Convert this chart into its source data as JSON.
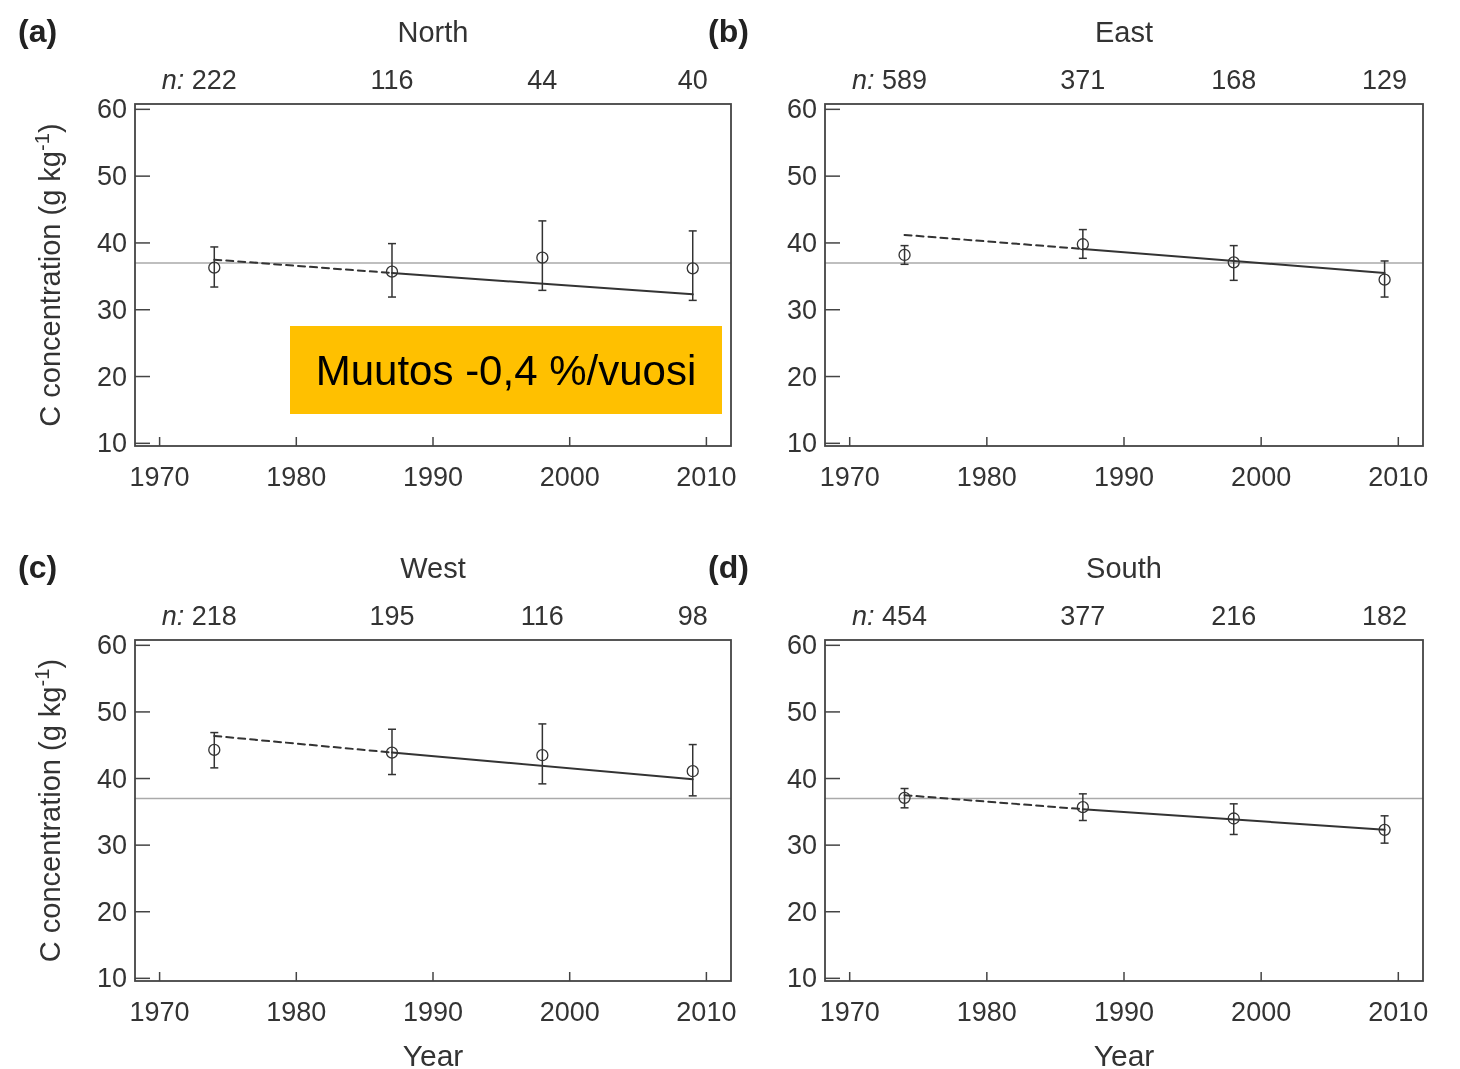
{
  "chart_data": [
    {
      "type": "scatter",
      "title": "North",
      "annotations": [
        "(a)",
        "n:",
        "222",
        "116",
        "44",
        "40"
      ],
      "ylabel": "C concentration (g kg$^{-1}$)",
      "xlim": [
        1968.2,
        2011.8
      ],
      "xticks": [
        1970,
        1980,
        1990,
        2000,
        2010
      ],
      "ylim": [
        9.6,
        60.8
      ],
      "yticks": [
        10,
        20,
        30,
        40,
        50,
        60
      ],
      "marker": "circle",
      "grid": false,
      "ref_lines": [
        {
          "axis": "y",
          "value": 37,
          "color": "#aaaaaa"
        }
      ],
      "series": [
        {
          "type": "scatter",
          "color": "#333333",
          "x": [
            1974,
            1987,
            1998,
            2009
          ],
          "values": [
            36.3,
            35.7,
            37.8,
            36.2
          ],
          "errors": [
            [
              33.4,
              39.4
            ],
            [
              31.9,
              39.9
            ],
            [
              32.9,
              43.3
            ],
            [
              31.4,
              41.8
            ]
          ]
        },
        {
          "type": "line",
          "color": "#333333",
          "line_style": "dashed",
          "marker": "none",
          "x": [
            1974,
            1987
          ],
          "values": [
            37.5,
            35.5
          ]
        },
        {
          "type": "line",
          "color": "#333333",
          "line_style": "solid",
          "marker": "none",
          "x": [
            1987,
            2009
          ],
          "values": [
            35.5,
            32.3
          ]
        }
      ]
    },
    {
      "type": "scatter",
      "title": "East",
      "annotations": [
        "(b)",
        "n:",
        "589",
        "371",
        "168",
        "129"
      ],
      "xlim": [
        1968.2,
        2011.8
      ],
      "xticks": [
        1970,
        1980,
        1990,
        2000,
        2010
      ],
      "ylim": [
        9.6,
        60.8
      ],
      "yticks": [
        10,
        20,
        30,
        40,
        50,
        60
      ],
      "marker": "circle",
      "grid": false,
      "ref_lines": [
        {
          "axis": "y",
          "value": 37,
          "color": "#aaaaaa"
        }
      ],
      "series": [
        {
          "type": "scatter",
          "color": "#333333",
          "x": [
            1974,
            1987,
            1998,
            2009
          ],
          "values": [
            38.2,
            39.8,
            37.1,
            34.5
          ],
          "errors": [
            [
              36.8,
              39.6
            ],
            [
              37.7,
              42.0
            ],
            [
              34.4,
              39.6
            ],
            [
              31.9,
              37.3
            ]
          ]
        },
        {
          "type": "line",
          "color": "#333333",
          "line_style": "dashed",
          "marker": "none",
          "x": [
            1974,
            1987
          ],
          "values": [
            41.2,
            39.1
          ]
        },
        {
          "type": "line",
          "color": "#333333",
          "line_style": "solid",
          "marker": "none",
          "x": [
            1987,
            2009
          ],
          "values": [
            39.1,
            35.5
          ]
        }
      ]
    },
    {
      "type": "scatter",
      "title": "West",
      "annotations": [
        "(c)",
        "n:",
        "218",
        "195",
        "116",
        "98"
      ],
      "ylabel": "C concentration (g kg$^{-1}$)",
      "xlabel": "Year",
      "xlim": [
        1968.2,
        2011.8
      ],
      "xticks": [
        1970,
        1980,
        1990,
        2000,
        2010
      ],
      "ylim": [
        9.6,
        60.8
      ],
      "yticks": [
        10,
        20,
        30,
        40,
        50,
        60
      ],
      "marker": "circle",
      "grid": false,
      "ref_lines": [
        {
          "axis": "y",
          "value": 37,
          "color": "#aaaaaa"
        }
      ],
      "series": [
        {
          "type": "scatter",
          "color": "#333333",
          "x": [
            1974,
            1987,
            1998,
            2009
          ],
          "values": [
            44.3,
            43.9,
            43.5,
            41.1
          ],
          "errors": [
            [
              41.6,
              46.9
            ],
            [
              40.6,
              47.4
            ],
            [
              39.2,
              48.2
            ],
            [
              37.4,
              45.1
            ]
          ]
        },
        {
          "type": "line",
          "color": "#333333",
          "line_style": "dashed",
          "marker": "none",
          "x": [
            1974,
            1987
          ],
          "values": [
            46.4,
            43.9
          ]
        },
        {
          "type": "line",
          "color": "#333333",
          "line_style": "solid",
          "marker": "none",
          "x": [
            1987,
            2009
          ],
          "values": [
            43.9,
            39.9
          ]
        }
      ]
    },
    {
      "type": "scatter",
      "title": "South",
      "annotations": [
        "(d)",
        "n:",
        "454",
        "377",
        "216",
        "182"
      ],
      "xlabel": "Year",
      "xlim": [
        1968.2,
        2011.8
      ],
      "xticks": [
        1970,
        1980,
        1990,
        2000,
        2010
      ],
      "ylim": [
        9.6,
        60.8
      ],
      "yticks": [
        10,
        20,
        30,
        40,
        50,
        60
      ],
      "marker": "circle",
      "grid": false,
      "ref_lines": [
        {
          "axis": "y",
          "value": 37,
          "color": "#aaaaaa"
        }
      ],
      "series": [
        {
          "type": "scatter",
          "color": "#333333",
          "x": [
            1974,
            1987,
            1998,
            2009
          ],
          "values": [
            37.1,
            35.7,
            34.0,
            32.3
          ],
          "errors": [
            [
              35.6,
              38.5
            ],
            [
              33.7,
              37.7
            ],
            [
              31.6,
              36.2
            ],
            [
              30.3,
              34.4
            ]
          ]
        },
        {
          "type": "line",
          "color": "#333333",
          "line_style": "dashed",
          "marker": "none",
          "x": [
            1974,
            1987
          ],
          "values": [
            37.5,
            35.4
          ]
        },
        {
          "type": "line",
          "color": "#333333",
          "line_style": "solid",
          "marker": "none",
          "x": [
            1987,
            2009
          ],
          "values": [
            35.4,
            32.3
          ]
        }
      ]
    },
    {
      "type": "other",
      "annotations": [
        "Muutos -0,4 %/vuosi"
      ],
      "color": "#ffc000"
    }
  ]
}
